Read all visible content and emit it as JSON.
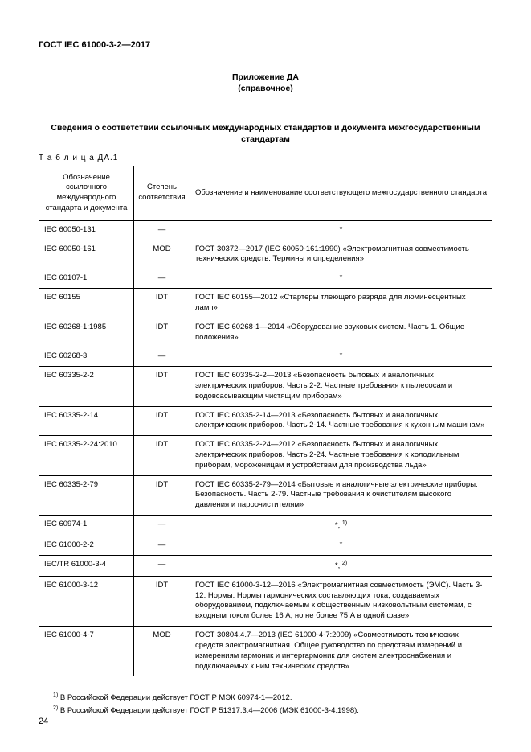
{
  "doc_id": "ГОСТ IEC 61000-3-2—2017",
  "annex_line1": "Приложение ДА",
  "annex_line2": "(справочное)",
  "section_title": "Сведения о соответствии ссылочных международных стандартов и документа межгосударственным стандартам",
  "table_label": "Т а б л и ц а  ДА.1",
  "headers": {
    "col1": "Обозначение ссылочного международного стандарта и документа",
    "col2": "Степень соответствия",
    "col3": "Обозначение и наименование соответствующего межгосударственного стандарта"
  },
  "rows": [
    {
      "ref": "IEC 60050-131",
      "deg": "—",
      "desc": "*",
      "center": true
    },
    {
      "ref": "IEC 60050-161",
      "deg": "MOD",
      "desc": "ГОСТ 30372—2017 (IEC 60050-161:1990) «Электромагнитная совместимость технических средств. Термины и определения»"
    },
    {
      "ref": "IEC 60107-1",
      "deg": "—",
      "desc": "*",
      "center": true
    },
    {
      "ref": "IEC 60155",
      "deg": "IDT",
      "desc": "ГОСТ IEC 60155—2012 «Стартеры тлеющего разряда для люминесцентных ламп»"
    },
    {
      "ref": "IEC 60268-1:1985",
      "deg": "IDT",
      "desc": "ГОСТ IEC 60268-1—2014 «Оборудование звуковых систем. Часть 1. Общие положения»"
    },
    {
      "ref": "IEC 60268-3",
      "deg": "—",
      "desc": "*",
      "center": true
    },
    {
      "ref": "IEC 60335-2-2",
      "deg": "IDT",
      "desc": "ГОСТ IEC 60335-2-2—2013 «Безопасность бытовых и аналогичных электрических приборов. Часть 2-2. Частные требования к пылесосам и водовсасывающим чистящим приборам»"
    },
    {
      "ref": "IEC 60335-2-14",
      "deg": "IDT",
      "desc": "ГОСТ IEC 60335-2-14—2013 «Безопасность бытовых и аналогичных электрических приборов. Часть 2-14. Частные требования к кухонным машинам»"
    },
    {
      "ref": "IEC 60335-2-24:2010",
      "deg": "IDT",
      "desc": "ГОСТ IEC 60335-2-24—2012 «Безопасность бытовых и аналогичных электрических приборов. Часть 2-24. Частные требования к холодильным приборам, мороженицам и устройствам для производства льда»"
    },
    {
      "ref": "IEC 60335-2-79",
      "deg": "IDT",
      "desc": "ГОСТ IEC 60335-2-79—2014 «Бытовые и аналогичные электрические приборы. Безопасность. Часть 2-79. Частные требования к очистителям высокого давления и пароочистителям»"
    },
    {
      "ref": "IEC 60974-1",
      "deg": "—",
      "desc": "*, 1)",
      "center": true,
      "sup": true
    },
    {
      "ref": "IEC 61000-2-2",
      "deg": "—",
      "desc": "*",
      "center": true
    },
    {
      "ref": "IEC/TR 61000-3-4",
      "deg": "—",
      "desc": "*, 2)",
      "center": true,
      "sup": true
    },
    {
      "ref": "IEC 61000-3-12",
      "deg": "IDT",
      "desc": "ГОСТ IEC 61000-3-12—2016 «Электромагнитная совместимость (ЭМС). Часть 3-12. Нормы. Нормы гармонических составляющих тока, создаваемых оборудованием, подключаемым к общественным низковольтным системам, с входным током более 16 А, но не более 75 А в одной фазе»"
    },
    {
      "ref": "IEC 61000-4-7",
      "deg": "MOD",
      "desc": "ГОСТ 30804.4.7—2013 (IEC 61000-4-7:2009) «Совместимость технических средств электромагнитная. Общее руководство по средствам измерений и измерениям гармоник и интергармоник для систем электроснабжения и подключаемых к ним технических средств»"
    }
  ],
  "footnotes": {
    "fn1_num": "1)",
    "fn1_text": " В Российской Федерации действует ГОСТ Р МЭК 60974-1—2012.",
    "fn2_num": "2)",
    "fn2_text": " В Российской Федерации действует ГОСТ Р 51317.3.4—2006 (МЭК 61000-3-4:1998)."
  },
  "page_number": "24"
}
